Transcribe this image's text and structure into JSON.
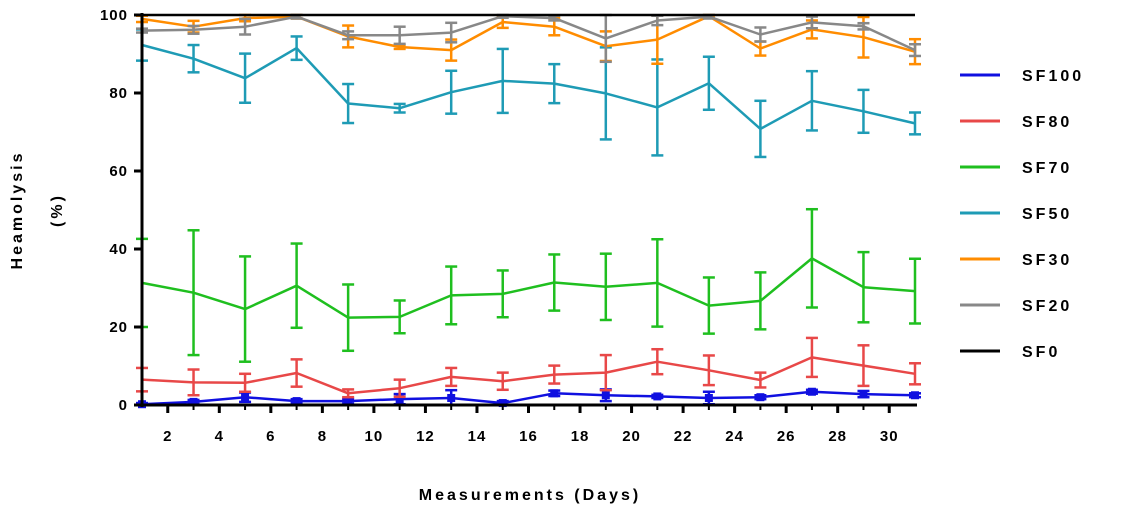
{
  "chart_data": {
    "type": "line",
    "xlabel": "Measurements (Days)",
    "ylabel_line1": "Heamolysis",
    "ylabel_line2": "(%)",
    "xlim": [
      1,
      31
    ],
    "ylim": [
      0,
      100
    ],
    "x_ticks": [
      2,
      4,
      6,
      8,
      10,
      12,
      14,
      16,
      18,
      20,
      22,
      24,
      26,
      28,
      30
    ],
    "y_ticks": [
      0,
      20,
      40,
      60,
      80,
      100
    ],
    "grid": false,
    "legend_position": "right",
    "x": [
      1,
      3,
      5,
      7,
      9,
      11,
      13,
      15,
      17,
      19,
      21,
      23,
      25,
      27,
      29,
      31
    ],
    "series": [
      {
        "name": "SF100",
        "color": "#1010e0",
        "values": [
          0.2,
          0.8,
          2.0,
          1.0,
          1.0,
          1.5,
          1.8,
          0.5,
          3.0,
          2.5,
          2.2,
          1.8,
          2.0,
          3.4,
          2.8,
          2.5
        ],
        "errors": [
          0.3,
          0.5,
          1.2,
          0.5,
          0.6,
          1.3,
          2.0,
          0.5,
          0.7,
          1.5,
          0.4,
          1.6,
          0.5,
          0.5,
          0.8,
          0.5
        ]
      },
      {
        "name": "SF80",
        "color": "#e84848",
        "values": [
          6.5,
          5.8,
          5.7,
          8.2,
          3.0,
          4.3,
          7.2,
          6.1,
          7.8,
          8.3,
          11.1,
          8.9,
          6.4,
          12.2,
          10.1,
          8.0
        ],
        "errors": [
          3.0,
          3.3,
          2.3,
          3.5,
          1.0,
          2.2,
          2.3,
          2.2,
          2.3,
          4.5,
          3.2,
          3.8,
          1.9,
          5.0,
          5.2,
          2.7
        ]
      },
      {
        "name": "SF70",
        "color": "#1fbf1f",
        "values": [
          31.3,
          28.8,
          24.6,
          30.6,
          22.4,
          22.6,
          28.1,
          28.5,
          31.4,
          30.3,
          31.3,
          25.5,
          26.7,
          37.6,
          30.2,
          29.2
        ],
        "errors": [
          11.3,
          16.0,
          13.5,
          10.8,
          8.5,
          4.2,
          7.4,
          6.0,
          7.2,
          8.5,
          11.2,
          7.2,
          7.3,
          12.6,
          9.0,
          8.3
        ]
      },
      {
        "name": "SF50",
        "color": "#1e9bb5",
        "values": [
          92.3,
          88.8,
          83.8,
          91.5,
          77.3,
          76.1,
          80.2,
          83.1,
          82.4,
          79.9,
          76.3,
          82.5,
          70.8,
          78.0,
          75.3,
          72.2
        ],
        "errors": [
          4.0,
          3.5,
          6.3,
          3.0,
          5.0,
          1.1,
          5.5,
          8.2,
          5.0,
          11.8,
          12.3,
          6.8,
          7.2,
          7.6,
          5.5,
          2.8
        ]
      },
      {
        "name": "SF30",
        "color": "#ff8c00",
        "values": [
          99.0,
          97.0,
          99.2,
          99.6,
          94.5,
          91.8,
          91.0,
          98.2,
          97.0,
          92.0,
          93.7,
          99.7,
          91.4,
          96.3,
          94.3,
          90.6
        ],
        "errors": [
          0.8,
          1.5,
          0.8,
          0.5,
          2.8,
          0.5,
          2.7,
          1.5,
          2.2,
          3.8,
          6.2,
          0.4,
          1.8,
          2.3,
          5.2,
          3.2
        ]
      },
      {
        "name": "SF20",
        "color": "#888888",
        "values": [
          96.0,
          96.2,
          97.0,
          99.6,
          94.8,
          94.8,
          95.5,
          99.7,
          99.2,
          94.0,
          98.6,
          99.6,
          95.0,
          98.1,
          97.1,
          91.0
        ],
        "errors": [
          0.5,
          1.0,
          2.0,
          0.5,
          1.0,
          2.2,
          2.5,
          0.4,
          0.6,
          6.0,
          1.2,
          0.5,
          1.8,
          1.5,
          0.8,
          1.5
        ]
      },
      {
        "name": "SF0",
        "color": "#000000",
        "values": [
          100,
          100,
          100,
          100,
          100,
          100,
          100,
          100,
          100,
          100,
          100,
          100,
          100,
          100,
          100,
          100
        ],
        "errors": [
          0,
          0,
          0,
          0,
          0,
          0,
          0,
          0,
          0,
          0,
          0,
          0,
          0,
          0,
          0,
          0
        ]
      }
    ]
  }
}
